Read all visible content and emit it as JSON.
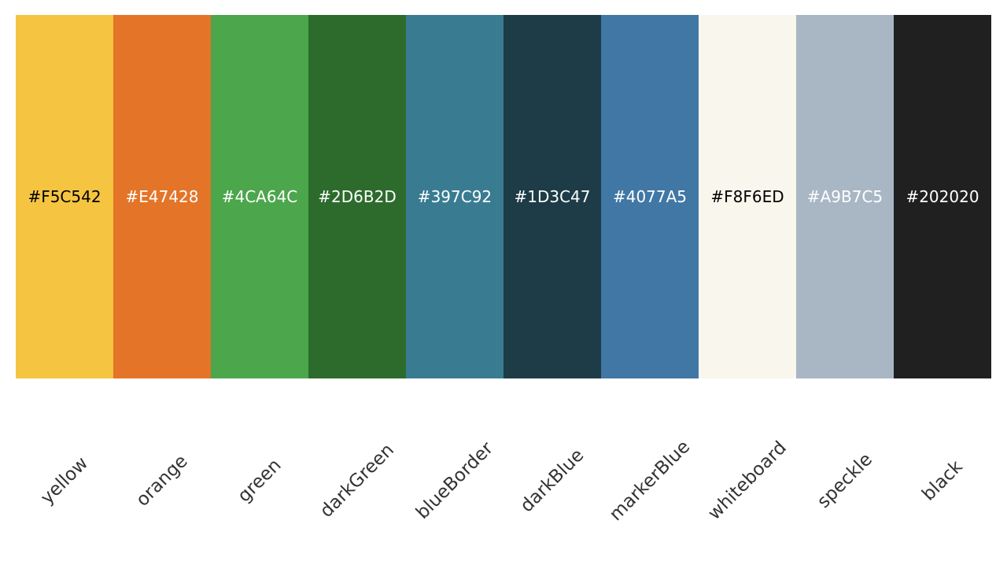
{
  "swatches": [
    {
      "name": "yellow",
      "hex": "#F5C542",
      "text_color": "#000000"
    },
    {
      "name": "orange",
      "hex": "#E47428",
      "text_color": "#ffffff"
    },
    {
      "name": "green",
      "hex": "#4CA64C",
      "text_color": "#ffffff"
    },
    {
      "name": "darkGreen",
      "hex": "#2D6B2D",
      "text_color": "#ffffff"
    },
    {
      "name": "blueBorder",
      "hex": "#397C92",
      "text_color": "#ffffff"
    },
    {
      "name": "darkBlue",
      "hex": "#1D3C47",
      "text_color": "#ffffff"
    },
    {
      "name": "markerBlue",
      "hex": "#4077A5",
      "text_color": "#ffffff"
    },
    {
      "name": "whiteboard",
      "hex": "#F8F6ED",
      "text_color": "#000000"
    },
    {
      "name": "speckle",
      "hex": "#A9B7C5",
      "text_color": "#ffffff"
    },
    {
      "name": "black",
      "hex": "#202020",
      "text_color": "#ffffff"
    }
  ]
}
